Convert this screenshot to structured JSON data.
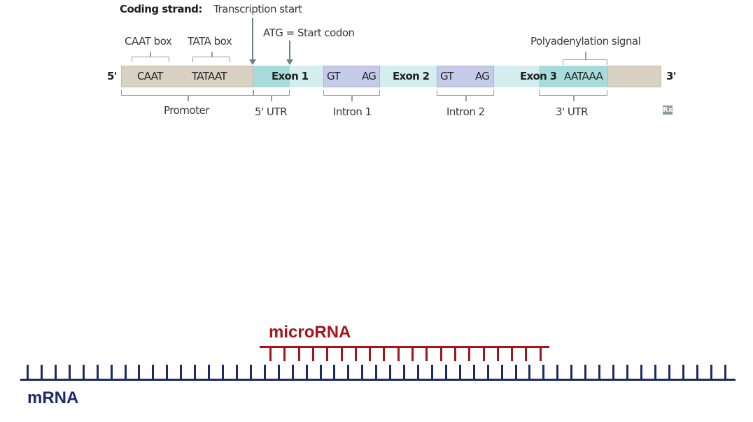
{
  "gene_diagram": {
    "coding_strand_label": "Coding strand:",
    "transcription_start_label": "Transcription start",
    "start_codon_label": "ATG = Start codon",
    "caat_box_label": "CAAT box",
    "tata_box_label": "TATA box",
    "polyadenylation_label": "Polyadenylation signal",
    "five_prime": "5'",
    "three_prime": "3'",
    "segments": {
      "caat": "CAAT",
      "tataat": "TATAAT",
      "exon1": "Exon 1",
      "intron1_gt": "GT",
      "intron1_ag": "AG",
      "exon2": "Exon 2",
      "intron2_gt": "GT",
      "intron2_ag": "AG",
      "exon3": "Exon 3",
      "aataaa": "AATAAA"
    },
    "region_labels": {
      "promoter": "Promoter",
      "utr5": "5' UTR",
      "intron1": "Intron 1",
      "intron2": "Intron 2",
      "utr3": "3' UTR"
    },
    "rx_icon": "Rx",
    "colors": {
      "promoter": "#d9d2c3",
      "exon_dark": "#a8dcdc",
      "exon_light": "#d4eef0",
      "intron": "#c5cbe8",
      "tail": "#d9d2c3"
    }
  },
  "binding_diagram": {
    "microrna_label": "microRNA",
    "mrna_label": "mRNA",
    "colors": {
      "microrna": "#a3141c",
      "mrna": "#1b2a6b"
    },
    "mrna_tick_count": 51,
    "microrna_tick_count": 20
  }
}
